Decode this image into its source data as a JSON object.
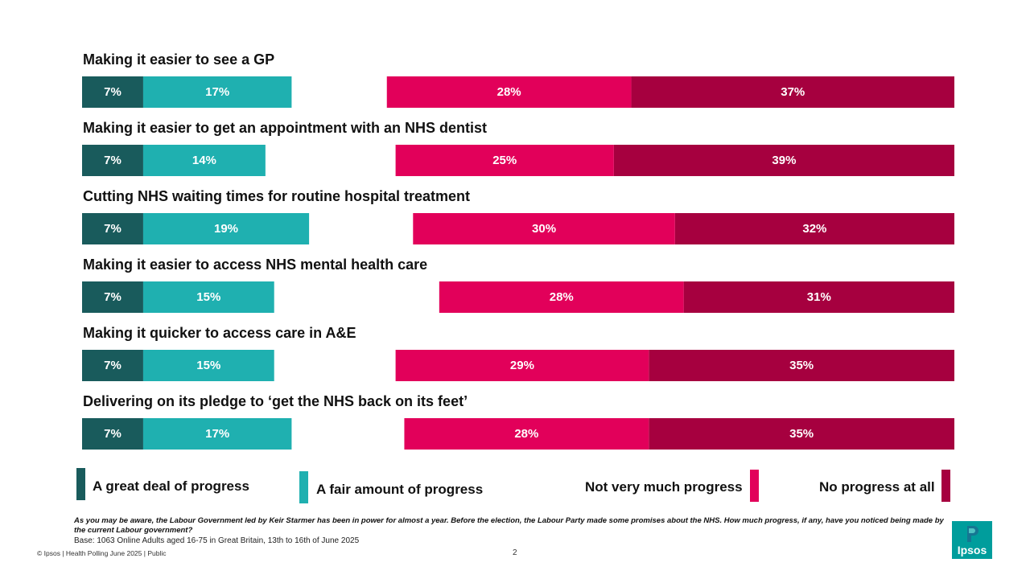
{
  "chart_data": {
    "type": "bar",
    "stacked": "diverging",
    "categories": [
      "Making it easier to see a GP",
      "Making it easier to get an appointment with an NHS dentist",
      "Cutting NHS waiting times for routine hospital treatment",
      "Making it easier to access NHS mental health care",
      "Making it quicker to access care in A&E",
      "Delivering on its pledge to ‘get the NHS back on its feet’"
    ],
    "series": [
      {
        "name": "A great deal of progress",
        "color": "#195b5c",
        "values": [
          7,
          7,
          7,
          7,
          7,
          7
        ],
        "labels": [
          "7%",
          "7%",
          "7%",
          "7%",
          "7%",
          "7%"
        ]
      },
      {
        "name": "A fair amount of progress",
        "color": "#1fb0b0",
        "values": [
          17,
          14,
          19,
          15,
          15,
          17
        ],
        "labels": [
          "17%",
          "14%",
          "19%",
          "15%",
          "15%",
          "17%"
        ]
      },
      {
        "name": "Not very much progress",
        "color": "#e2005a",
        "values": [
          28,
          25,
          30,
          28,
          29,
          28
        ],
        "labels": [
          "28%",
          "25%",
          "30%",
          "28%",
          "29%",
          "28%"
        ]
      },
      {
        "name": "No progress at all",
        "color": "#a6003f",
        "values": [
          37,
          39,
          32,
          31,
          35,
          35
        ],
        "labels": [
          "37%",
          "39%",
          "32%",
          "31%",
          "35%",
          "35%"
        ]
      }
    ],
    "grid": false,
    "legend_position": "bottom"
  },
  "legend": [
    {
      "label": "A great deal of progress",
      "color": "#195b5c"
    },
    {
      "label": "A fair amount of progress",
      "color": "#1fb0b0"
    },
    {
      "label": "Not very much progress",
      "color": "#e2005a"
    },
    {
      "label": "No progress at all",
      "color": "#a6003f"
    }
  ],
  "question": "As you may be aware, the Labour Government led by Keir Starmer has been in power for almost a year. Before the election, the Labour Party made some promises about the NHS. How much progress, if any, have you noticed being made by the current Labour government?",
  "base": "Base: 1063 Online Adults aged 16-75 in Great Britain, 13th to 16th of June 2025",
  "footer": "© Ipsos | Health Polling June 2025 | Public",
  "page_number": "2",
  "logo": {
    "text": "Ipsos",
    "color": "#009d9c"
  }
}
